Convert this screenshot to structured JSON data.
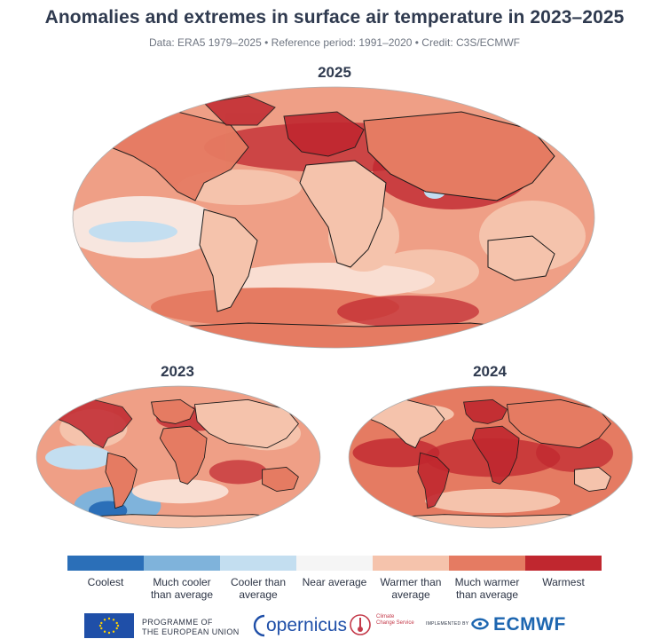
{
  "header": {
    "title": "Anomalies and extremes in surface air temperature in 2023–2025",
    "subtitle": "Data: ERA5 1979–2025 • Reference period: 1991–2020 • Credit: C3S/ECMWF"
  },
  "maps": [
    {
      "label": "2025",
      "dominant_category": "warmer"
    },
    {
      "label": "2023",
      "dominant_category": "warmer"
    },
    {
      "label": "2024",
      "dominant_category": "much_warmer"
    }
  ],
  "legend": [
    {
      "label": "Coolest",
      "color": "#2b6fb8"
    },
    {
      "label": "Much cooler than average",
      "color": "#7fb3db"
    },
    {
      "label": "Cooler than average",
      "color": "#c3def0"
    },
    {
      "label": "Near average",
      "color": "#f5f5f5"
    },
    {
      "label": "Warmer than average",
      "color": "#f5c3ac"
    },
    {
      "label": "Much warmer than average",
      "color": "#e57b62"
    },
    {
      "label": "Warmest",
      "color": "#c0272f"
    }
  ],
  "footer": {
    "eu_line1": "PROGRAMME OF",
    "eu_line2": "THE EUROPEAN UNION",
    "copernicus": "opernicus",
    "c3s_line1": "Climate",
    "c3s_line2": "Change Service",
    "implemented_by": "IMPLEMENTED BY",
    "ecmwf": "ECMWF"
  },
  "colors": {
    "ocean_base": "#ef9f86",
    "land_stroke": "#1a1a1a"
  }
}
